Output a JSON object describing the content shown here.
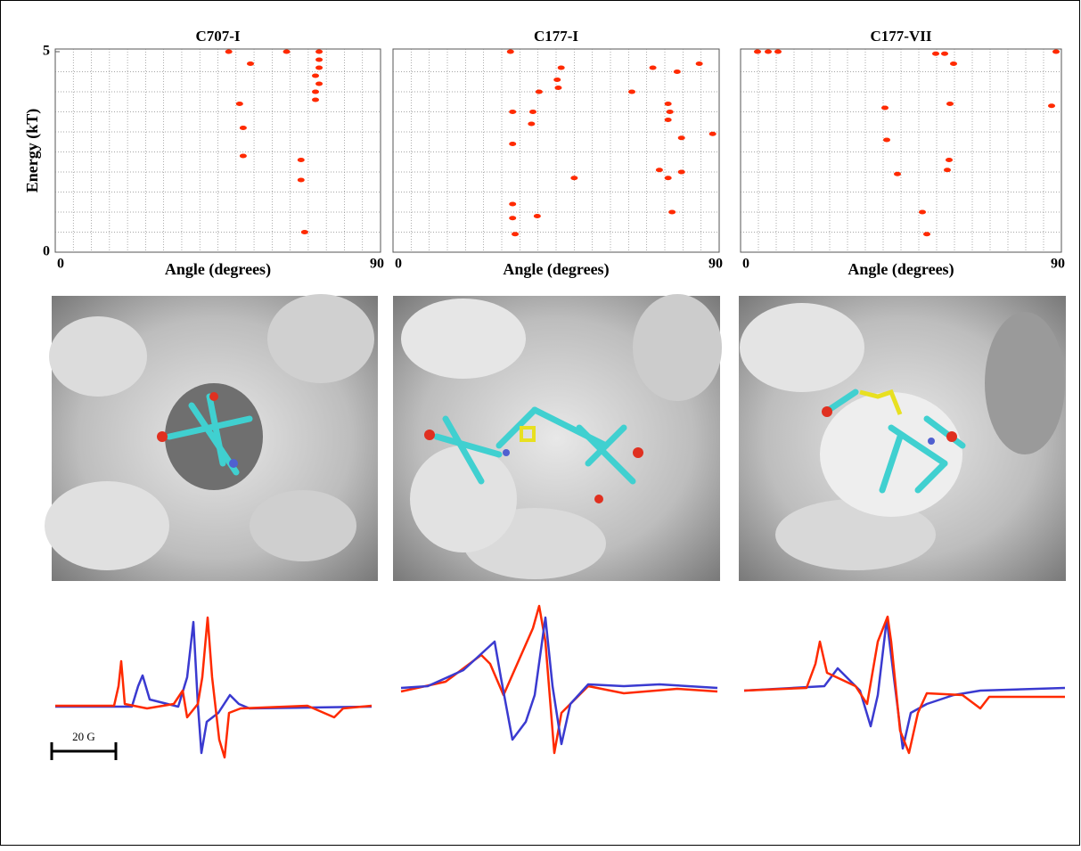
{
  "chart_data": [
    {
      "type": "scatter",
      "title": "C707-I",
      "x_label": "Angle (degrees)",
      "y_label": "Energy (kT)",
      "xlim": [
        0,
        90
      ],
      "ylim": [
        0,
        5
      ],
      "xticks": [
        0,
        90
      ],
      "yticks": [
        0,
        5
      ],
      "grid": true,
      "grid_xticks": [
        5,
        10,
        15,
        20,
        25,
        30,
        35,
        40,
        45,
        50,
        55,
        60,
        65,
        70,
        75,
        80,
        85
      ],
      "grid_yticks": [
        0.5,
        1,
        1.5,
        2,
        2.5,
        3,
        3.5,
        4,
        4.5
      ],
      "color": "#ff2a00",
      "x": [
        48,
        54,
        64,
        51,
        52,
        52,
        68,
        68,
        69,
        73,
        73,
        73,
        72,
        73,
        72,
        72
      ],
      "values": [
        5.0,
        4.7,
        5.0,
        3.7,
        3.1,
        2.4,
        2.3,
        1.8,
        0.5,
        5.0,
        4.8,
        4.6,
        4.4,
        4.2,
        4.0,
        3.8
      ]
    },
    {
      "type": "scatter",
      "title": "C177-I",
      "x_label": "Angle (degrees)",
      "xlim": [
        0,
        90
      ],
      "ylim": [
        0,
        5
      ],
      "xticks": [
        0,
        90
      ],
      "grid": true,
      "grid_xticks": [
        5,
        10,
        15,
        20,
        25,
        30,
        35,
        40,
        45,
        50,
        55,
        60,
        65,
        70,
        75,
        80,
        85
      ],
      "grid_yticks": [
        0.5,
        1,
        1.5,
        2,
        2.5,
        3,
        3.5,
        4,
        4.5
      ],
      "color": "#ff2a00",
      "x": [
        32.4,
        46.4,
        45.3,
        45.6,
        40.3,
        33.0,
        38.6,
        38.2,
        33.0,
        50.0,
        33.0,
        33.0,
        33.7,
        39.8,
        65.9,
        71.7,
        78.4,
        84.5,
        75.9,
        76.4,
        75.9,
        79.6,
        88.2,
        73.5,
        79.6,
        77.0,
        75.9
      ],
      "values": [
        5.0,
        4.6,
        4.3,
        4.1,
        4.0,
        3.5,
        3.5,
        3.2,
        2.7,
        1.85,
        1.2,
        0.85,
        0.45,
        0.9,
        4.0,
        4.6,
        4.5,
        4.7,
        3.7,
        3.5,
        3.3,
        2.85,
        2.95,
        2.05,
        2.0,
        1.0,
        1.85
      ]
    },
    {
      "type": "scatter",
      "title": "C177-VII",
      "x_label": "Angle (degrees)",
      "xlim": [
        0,
        90
      ],
      "ylim": [
        0,
        5
      ],
      "xticks": [
        0,
        90
      ],
      "grid": true,
      "grid_xticks": [
        5,
        10,
        15,
        20,
        25,
        30,
        35,
        40,
        45,
        50,
        55,
        60,
        65,
        70,
        75,
        80,
        85
      ],
      "grid_yticks": [
        0.5,
        1,
        1.5,
        2,
        2.5,
        3,
        3.5,
        4,
        4.5
      ],
      "color": "#ff2a00",
      "x": [
        4.75,
        7.75,
        10.5,
        40.5,
        41,
        44,
        51,
        52.25,
        57.25,
        59.75,
        58.75,
        58.5,
        58,
        87.25,
        88.5,
        54.75
      ],
      "values": [
        5.0,
        5.0,
        5.0,
        3.6,
        2.8,
        1.95,
        1.0,
        0.45,
        4.95,
        4.7,
        3.7,
        2.3,
        2.05,
        3.65,
        5.0,
        4.95
      ]
    }
  ],
  "scale_bar": "20 G"
}
